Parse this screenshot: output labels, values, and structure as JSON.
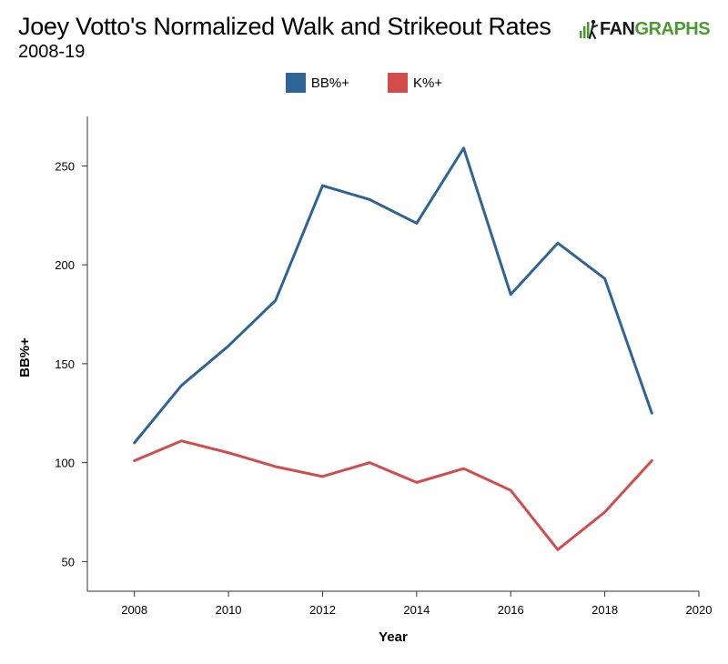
{
  "header": {
    "title": "Joey Votto's Normalized Walk and Strikeout Rates",
    "subtitle": "2008-19"
  },
  "logo": {
    "part1": "FAN",
    "part2": "GRAPHS",
    "accent_color": "#4a9b2f"
  },
  "chart_data": {
    "type": "line",
    "title": "Joey Votto's Normalized Walk and Strikeout Rates",
    "subtitle": "2008-19",
    "xlabel": "Year",
    "ylabel": "BB%+",
    "x": [
      2008,
      2009,
      2010,
      2011,
      2012,
      2013,
      2014,
      2015,
      2016,
      2017,
      2018,
      2019
    ],
    "xlim": [
      2007,
      2020
    ],
    "ylim": [
      35,
      275
    ],
    "xticks": [
      2008,
      2010,
      2012,
      2014,
      2016,
      2018,
      2020
    ],
    "yticks": [
      50,
      100,
      150,
      200,
      250
    ],
    "grid": false,
    "legend_position": "top-center",
    "series": [
      {
        "name": "BB%+",
        "color": "#2f6497",
        "values": [
          110,
          139,
          159,
          182,
          240,
          233,
          221,
          259,
          185,
          211,
          193,
          125
        ]
      },
      {
        "name": "K%+",
        "color": "#d24c4c",
        "values": [
          101,
          111,
          105,
          98,
          93,
          100,
          90,
          97,
          86,
          56,
          75,
          101
        ]
      }
    ]
  }
}
